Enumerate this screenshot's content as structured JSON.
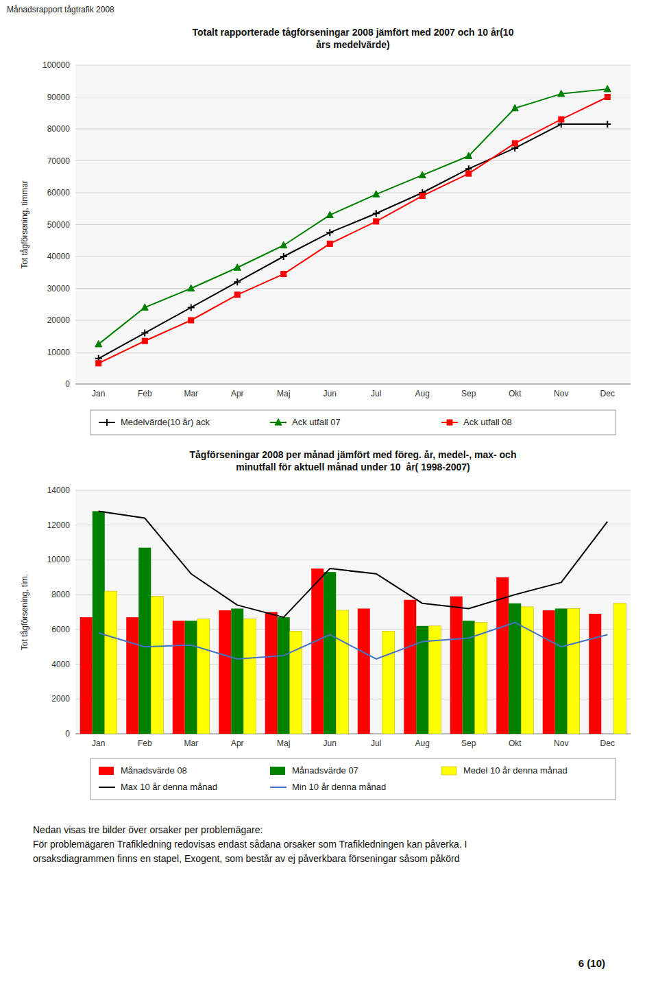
{
  "title": "Månadsrapport tågtrafik 2008",
  "footer": "6 (10)",
  "text": [
    "Nedan visas tre bilder över orsaker per problemägare:",
    "För problemägaren Trafikledning redovisas endast sådana orsaker som Trafikledningen kan påverka. I",
    "orsaksdiagrammen finns en stapel, Exogent, som består av ej påverkbara förseningar såsom påkörd"
  ],
  "chart_data": [
    {
      "type": "line",
      "title": "Totalt rapporterade tågförseningar 2008 jämfört med 2007 och 10 år(10\nårs medelvärde)",
      "y_label": "Tot tågförsening, timmar",
      "categories": [
        "Jan",
        "Feb",
        "Mar",
        "Apr",
        "Maj",
        "Jun",
        "Jul",
        "Aug",
        "Sep",
        "Okt",
        "Nov",
        "Dec"
      ],
      "series": [
        {
          "name": "Medelvärde(10 år) ack",
          "color": "#000000",
          "marker": "plus",
          "values": [
            8000,
            16000,
            24000,
            32000,
            40000,
            47500,
            53500,
            60000,
            67500,
            74000,
            81500,
            81500
          ]
        },
        {
          "name": "Ack utfall 07",
          "color": "#008000",
          "marker": "triangle",
          "values": [
            12500,
            24000,
            30000,
            36500,
            43500,
            53000,
            59500,
            65500,
            71500,
            86500,
            91000,
            92500
          ]
        },
        {
          "name": "Ack utfall 08",
          "color": "#FF0000",
          "marker": "square",
          "values": [
            6500,
            13500,
            20000,
            28000,
            34500,
            44000,
            51000,
            59000,
            66000,
            75500,
            83000,
            90000
          ]
        }
      ],
      "ylim": [
        0,
        100000
      ],
      "yticks": [
        0,
        10000,
        20000,
        30000,
        40000,
        50000,
        60000,
        70000,
        80000,
        90000,
        100000
      ],
      "grid": true,
      "legend": "bottom"
    },
    {
      "type": "bar",
      "title": "Tågförseningar 2008 per månad jämfört med föreg. år, medel-, max- och\nminutfall för aktuell månad under 10  år( 1998-2007)",
      "y_label": "Tot tågförsening, tim.",
      "categories": [
        "Jan",
        "Feb",
        "Mar",
        "Apr",
        "Maj",
        "Jun",
        "Jul",
        "Aug",
        "Sep",
        "Okt",
        "Nov",
        "Dec"
      ],
      "series": [
        {
          "name": "Månadsvärde 08",
          "color": "#FF0000",
          "type": "bar",
          "values": [
            6700,
            6700,
            6500,
            7100,
            7000,
            9500,
            7200,
            7700,
            7900,
            9000,
            7100,
            6900
          ]
        },
        {
          "name": "Månadsvärde 07",
          "color": "#008000",
          "type": "bar",
          "values": [
            12800,
            10700,
            6500,
            7200,
            6700,
            9300,
            null,
            6200,
            6500,
            7500,
            7200,
            null
          ]
        },
        {
          "name": "Medel 10 år denna månad",
          "color": "#FFFF00",
          "type": "bar",
          "values": [
            8200,
            7900,
            6600,
            6600,
            5900,
            7100,
            5900,
            6200,
            6400,
            7300,
            7200,
            7500
          ]
        },
        {
          "name": "Max 10 år denna månad",
          "color": "#000000",
          "type": "line",
          "values": [
            12800,
            12400,
            9200,
            7400,
            6700,
            9500,
            9200,
            7500,
            7200,
            8000,
            8700,
            12200
          ]
        },
        {
          "name": "Min 10 år denna månad",
          "color": "#4472C4",
          "type": "line",
          "values": [
            5800,
            5000,
            5100,
            4300,
            4500,
            5700,
            4300,
            5300,
            5500,
            6400,
            5000,
            5700
          ]
        }
      ],
      "ylim": [
        0,
        14000
      ],
      "yticks": [
        0,
        2000,
        4000,
        6000,
        8000,
        10000,
        12000,
        14000
      ],
      "grid": true,
      "legend": "bottom"
    }
  ]
}
